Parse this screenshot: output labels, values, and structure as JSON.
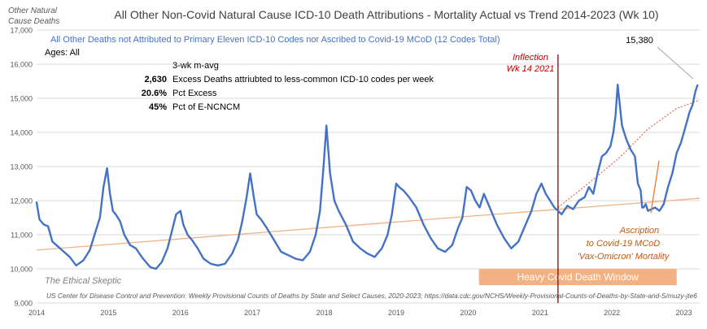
{
  "chart_data": {
    "type": "line",
    "title": "All Other Non-Covid Natural Cause ICD-10 Death Attributions - Mortality Actual vs Trend  2014-2023 (Wk 10)",
    "ylabel_line1": "Other Natural",
    "ylabel_line2": "Cause Deaths",
    "subtitle": "All Other Deaths not Attributed to Primary Eleven ICD-10 Codes nor Ascribed to Covid-19 MCoD (12 Codes Total)",
    "ages": "Ages: All",
    "stats_header": "3-wk m-avg",
    "stats": [
      {
        "value": "2,630",
        "label": "Excess Deaths attriubted to less-common ICD-10 codes per week"
      },
      {
        "value": "20.6%",
        "label": "Pct Excess"
      },
      {
        "value": "45%",
        "label": "Pct of E-NCNCM"
      }
    ],
    "peak_label": "15,380",
    "inflection_line1": "Inflection",
    "inflection_line2": "Wk 14 2021",
    "ascription_line1": "Ascription",
    "ascription_line2": "to Covid-19 MCoD",
    "ascription_line3": "'Vax-Omicron' Mortality",
    "window_label": "Heavy Covid Death Window",
    "watermark": "The Ethical Skeptic",
    "source": "US Center for Disease Control and Prevention: Weekly Provisional Counts of Deaths by State and Select Causes, 2020-2023; https://data.cdc.gov/NCHS/Weekly-Provisional-Counts-of-Deaths-by-State-and-S/muzy-jte6",
    "x_ticks": [
      "2014",
      "2015",
      "2016",
      "2017",
      "2018",
      "2019",
      "2020",
      "2021",
      "2022",
      "2023"
    ],
    "y_ticks": [
      "9,000",
      "10,000",
      "11,000",
      "12,000",
      "13,000",
      "14,000",
      "15,000",
      "16,000",
      "17,000"
    ],
    "ylim": [
      9000,
      17000
    ],
    "xlim": [
      2014.0,
      2023.22
    ],
    "grid": "horizontal",
    "colors": {
      "actual": "#4472c4",
      "trend": "#f4b183",
      "inflection": "#7b0a0a",
      "window": "#f4b183",
      "title": "#404040",
      "subtitle": "#4472c4",
      "annotation": "#c55a11"
    },
    "inflection_x": 2021.25,
    "window_x": [
      2020.15,
      2022.9
    ],
    "trend": {
      "x": [
        2014.0,
        2023.22
      ],
      "y": [
        10550,
        12070
      ]
    },
    "trend_projection": {
      "x": [
        2021.25,
        2021.7,
        2022.1,
        2022.5,
        2022.9,
        2023.22
      ],
      "y": [
        11800,
        12550,
        13250,
        14100,
        14700,
        14950
      ]
    },
    "series": [
      {
        "x": [
          2014.0,
          2014.04,
          2014.1,
          2014.16,
          2014.22,
          2014.3,
          2014.38,
          2014.46,
          2014.55,
          2014.65,
          2014.74,
          2014.82,
          2014.88,
          2014.93,
          2014.98,
          2015.02,
          2015.06,
          2015.1,
          2015.16,
          2015.22,
          2015.3,
          2015.38,
          2015.48,
          2015.58,
          2015.66,
          2015.74,
          2015.82,
          2015.88,
          2015.94,
          2016.0,
          2016.04,
          2016.1,
          2016.16,
          2016.24,
          2016.32,
          2016.42,
          2016.52,
          2016.62,
          2016.72,
          2016.8,
          2016.86,
          2016.92,
          2016.97,
          2017.02,
          2017.06,
          2017.12,
          2017.2,
          2017.3,
          2017.4,
          2017.5,
          2017.6,
          2017.7,
          2017.8,
          2017.88,
          2017.94,
          2017.99,
          2018.03,
          2018.08,
          2018.14,
          2018.2,
          2018.3,
          2018.4,
          2018.5,
          2018.6,
          2018.7,
          2018.8,
          2018.88,
          2018.94,
          2019.0,
          2019.04,
          2019.1,
          2019.18,
          2019.28,
          2019.38,
          2019.48,
          2019.58,
          2019.68,
          2019.78,
          2019.86,
          2019.92,
          2019.98,
          2020.04,
          2020.1,
          2020.16,
          2020.22,
          2020.3,
          2020.4,
          2020.5,
          2020.6,
          2020.7,
          2020.8,
          2020.88,
          2020.95,
          2021.02,
          2021.08,
          2021.14,
          2021.2,
          2021.25,
          2021.3,
          2021.38,
          2021.46,
          2021.54,
          2021.62,
          2021.68,
          2021.74,
          2021.8,
          2021.86,
          2021.92,
          2021.98,
          2022.02,
          2022.05,
          2022.08,
          2022.14,
          2022.2,
          2022.26,
          2022.32,
          2022.36,
          2022.4,
          2022.42,
          2022.44,
          2022.47,
          2022.5,
          2022.55,
          2022.6,
          2022.66,
          2022.72,
          2022.78,
          2022.84,
          2022.9,
          2022.96,
          2023.0,
          2023.04,
          2023.08,
          2023.12,
          2023.16,
          2023.19
        ],
        "y": [
          11950,
          11450,
          11300,
          11250,
          10800,
          10650,
          10500,
          10350,
          10100,
          10250,
          10550,
          11100,
          11500,
          12400,
          12950,
          12200,
          11700,
          11600,
          11400,
          11000,
          10700,
          10600,
          10300,
          10050,
          10000,
          10200,
          10600,
          11100,
          11600,
          11700,
          11300,
          11000,
          10850,
          10600,
          10300,
          10150,
          10100,
          10150,
          10450,
          10850,
          11400,
          12100,
          12800,
          12100,
          11600,
          11450,
          11200,
          10850,
          10500,
          10400,
          10300,
          10250,
          10500,
          11000,
          11700,
          13000,
          14200,
          12800,
          12000,
          11700,
          11300,
          10800,
          10600,
          10450,
          10350,
          10600,
          11000,
          11600,
          12500,
          12400,
          12300,
          12100,
          11800,
          11300,
          10900,
          10600,
          10500,
          10700,
          11200,
          11500,
          12400,
          12300,
          12000,
          11800,
          12200,
          11800,
          11300,
          10900,
          10600,
          10800,
          11300,
          11700,
          12200,
          12500,
          12200,
          12000,
          11800,
          11700,
          11600,
          11850,
          11750,
          12000,
          12100,
          12400,
          12200,
          12800,
          13300,
          13400,
          13600,
          14000,
          14500,
          15400,
          14200,
          13800,
          13500,
          13300,
          12500,
          12300,
          11800,
          11800,
          11900,
          11700,
          11750,
          11800,
          11700,
          11900,
          12400,
          12800,
          13400,
          13700,
          14000,
          14300,
          14600,
          14800,
          15200,
          15380
        ]
      }
    ]
  }
}
